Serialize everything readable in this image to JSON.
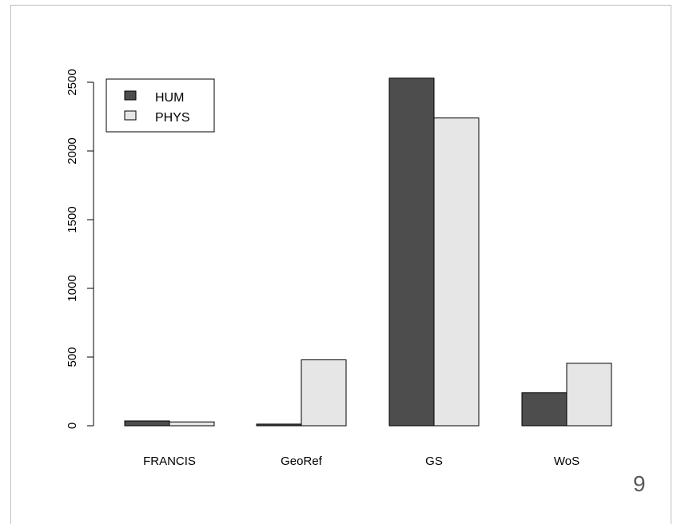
{
  "page_number": "9",
  "colors": {
    "HUM": "#4d4d4d",
    "PHYS": "#e6e6e6"
  },
  "chart_data": {
    "type": "bar",
    "categories": [
      "FRANCIS",
      "GeoRef",
      "GS",
      "WoS"
    ],
    "series": [
      {
        "name": "HUM",
        "values": [
          35,
          12,
          2530,
          240
        ]
      },
      {
        "name": "PHYS",
        "values": [
          28,
          480,
          2240,
          455
        ]
      }
    ],
    "yticks": [
      "0",
      "500",
      "1000",
      "1500",
      "2000",
      "2500"
    ],
    "ylim": [
      0,
      2500
    ],
    "grid": false,
    "legend_position": "top-left"
  }
}
